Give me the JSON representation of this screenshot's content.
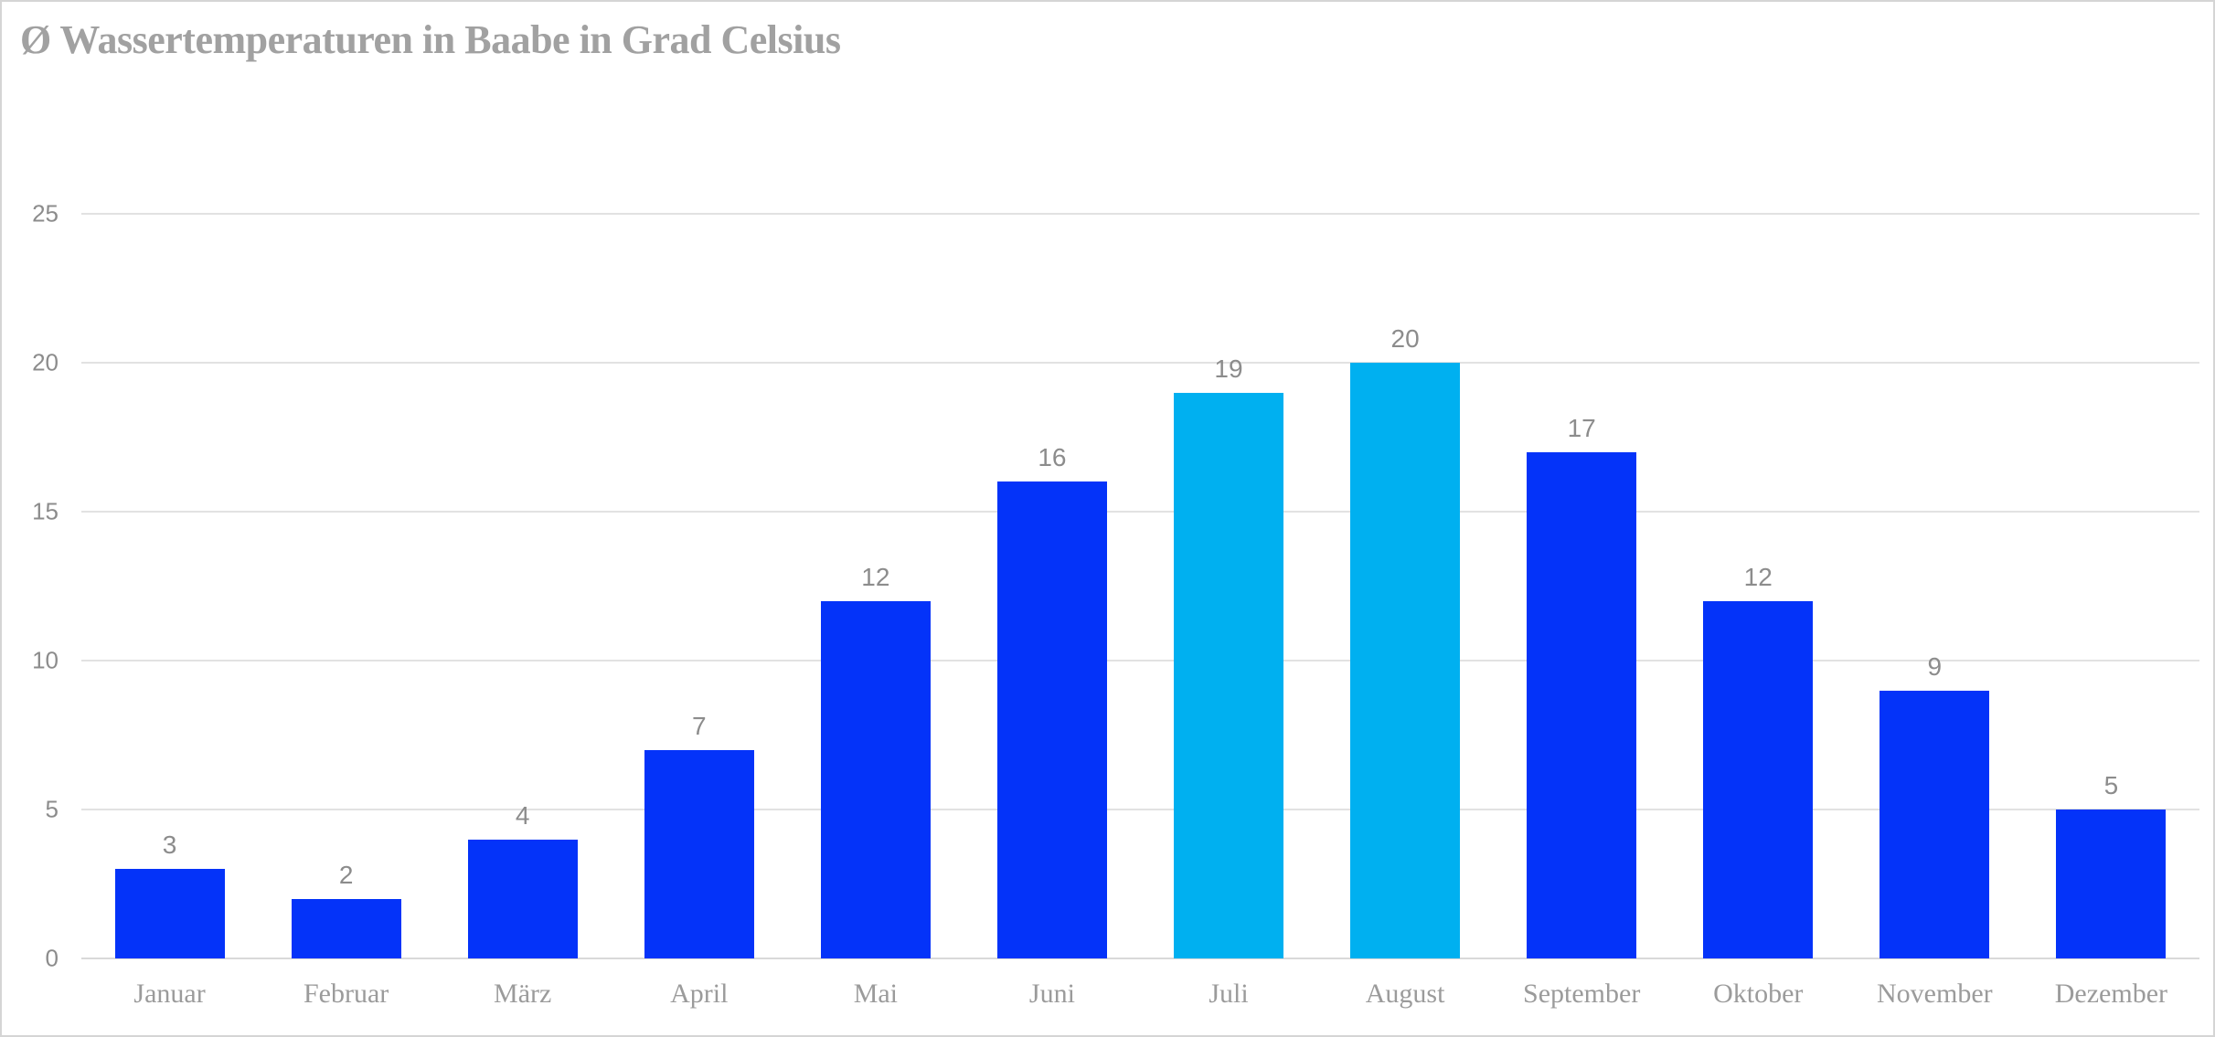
{
  "page": {
    "background": "#FFFFFF",
    "border_color": "#D5D5D5"
  },
  "chart_data": {
    "type": "bar",
    "title": "Ø Wassertemperaturen in Baabe in Grad Celsius",
    "categories": [
      "Januar",
      "Februar",
      "März",
      "April",
      "Mai",
      "Juni",
      "Juli",
      "August",
      "September",
      "Oktober",
      "November",
      "Dezember"
    ],
    "values": [
      3,
      2,
      4,
      7,
      12,
      16,
      19,
      20,
      17,
      12,
      9,
      5
    ],
    "data_labels": [
      "3",
      "2",
      "4",
      "7",
      "12",
      "16",
      "19",
      "20",
      "17",
      "12",
      "9",
      "5"
    ],
    "highlighted_categories": [
      "Juli",
      "August"
    ],
    "yticks": [
      0,
      5,
      10,
      15,
      20,
      25
    ],
    "ylim": [
      0,
      25
    ],
    "xlabel": "",
    "ylabel": "",
    "grid": true,
    "legend": "none",
    "bar_color": "#0433F9",
    "highlight_color": "#00B0F0",
    "gridline_color": "#E2E2E2",
    "baseline_color": "#D9D9D9",
    "title_color": "#A1A1A1",
    "tick_label_color": "#8C8C8C",
    "data_label_color": "#8C8C8C",
    "category_label_color": "#9B9B9B"
  }
}
